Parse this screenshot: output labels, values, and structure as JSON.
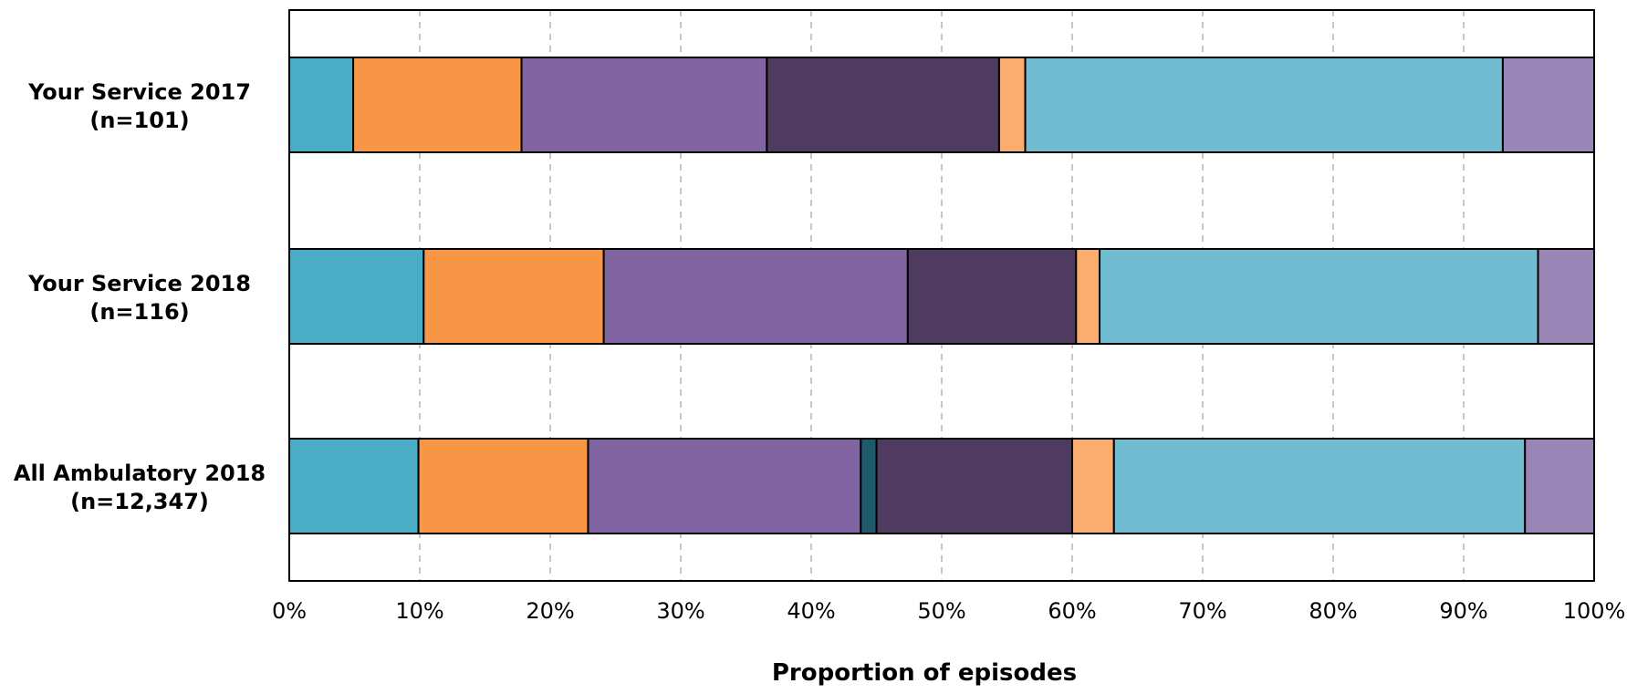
{
  "chart_data": {
    "type": "bar",
    "orientation": "horizontal",
    "stacked": true,
    "xlabel": "Proportion of episodes",
    "xlim": [
      0,
      100
    ],
    "x_tick_values": [
      0,
      10,
      20,
      30,
      40,
      50,
      60,
      70,
      80,
      90,
      100
    ],
    "x_tick_labels": [
      "0%",
      "10%",
      "20%",
      "30%",
      "40%",
      "50%",
      "60%",
      "70%",
      "80%",
      "90%",
      "100%"
    ],
    "grid": true,
    "legend": "none",
    "categories": [
      {
        "line1": "Your Service 2017",
        "line2": "(n=101)"
      },
      {
        "line1": "Your Service 2018",
        "line2": "(n=116)"
      },
      {
        "line1": "All Ambulatory 2018",
        "line2": "(n=12,347)"
      }
    ],
    "series": [
      {
        "color": "#4bacc6",
        "values": [
          4.9,
          10.3,
          9.9
        ]
      },
      {
        "color": "#f79646",
        "values": [
          12.9,
          13.8,
          13.0
        ]
      },
      {
        "color": "#8064a2",
        "values": [
          18.8,
          23.3,
          20.9
        ]
      },
      {
        "color": "#1f5a6b",
        "values": [
          0,
          0,
          1.2
        ]
      },
      {
        "color": "#4f3a60",
        "values": [
          17.8,
          12.9,
          15.0
        ]
      },
      {
        "color": "#fbac6f",
        "values": [
          2.0,
          1.8,
          3.2
        ]
      },
      {
        "color": "#72bcd1",
        "values": [
          36.6,
          33.6,
          31.5
        ]
      },
      {
        "color": "#9a86b6",
        "values": [
          7.0,
          4.3,
          5.3
        ]
      }
    ]
  }
}
